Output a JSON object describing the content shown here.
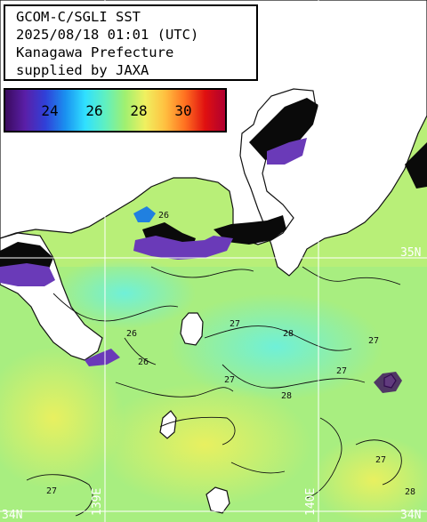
{
  "title": {
    "line1": "GCOM-C/SGLI SST",
    "line2": "2025/08/18 01:01 (UTC)",
    "line3": "Kanagawa Prefecture",
    "line4": "supplied by JAXA"
  },
  "colorbar": {
    "ticks": [
      "24",
      "26",
      "28",
      "30"
    ],
    "colors": [
      "#3a0a5e",
      "#5a1fa8",
      "#3040d8",
      "#1a90f0",
      "#30e0ff",
      "#60f0c0",
      "#a0f070",
      "#f0f060",
      "#ffc040",
      "#ff7020",
      "#e01010",
      "#b00030"
    ]
  },
  "grid_labels": {
    "lat_34_left": "34N",
    "lat_34_right": "34N",
    "lat_35_right": "35N",
    "lon_139": "139E",
    "lon_140": "140E"
  },
  "contour_labels": [
    "26",
    "27",
    "28",
    "27",
    "27",
    "28",
    "27",
    "26",
    "27",
    "28",
    "26",
    "27"
  ],
  "colors": {
    "land": "#ffffff",
    "coast": "#111111",
    "sea_base": "#b8ef78",
    "cold": "#6a3ab8",
    "cloud": "#0a0a0a",
    "gridline": "#ffffff"
  }
}
